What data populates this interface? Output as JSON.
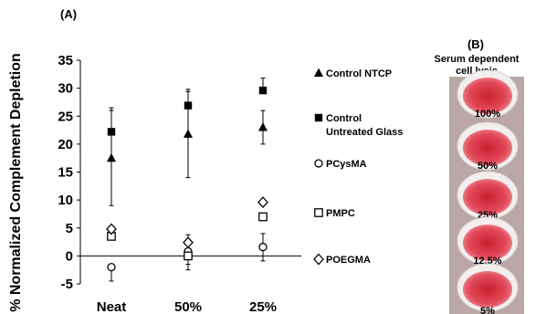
{
  "panel_a_label": "(A)",
  "panel_b_label": "(B)",
  "panel_b_title_line1": "Serum dependent",
  "panel_b_title_line2": "cell lysis",
  "well_labels": [
    "100%",
    "50%",
    "25%",
    "12.5%",
    "5%"
  ],
  "colors": {
    "marker": "#000000",
    "tray_bg": "#b9a8a6",
    "well_rim": "#f2eeee",
    "well_fill": "#e24a5a",
    "well_center": "#c9202e"
  },
  "chart_data": {
    "type": "scatter",
    "title": "",
    "xlabel": "",
    "ylabel": "% Normalized Complement Depletion",
    "categories": [
      "Neat",
      "50%",
      "25%"
    ],
    "ylim": [
      -5,
      35
    ],
    "yticks": [
      -5,
      0,
      5,
      10,
      15,
      20,
      25,
      30,
      35
    ],
    "grid": false,
    "legend_position": "right",
    "series": [
      {
        "name": "Control NTCP",
        "marker": "triangle-filled",
        "values": [
          17.5,
          21.8,
          23.0
        ],
        "err_high": [
          26.5,
          29.8,
          26.0
        ],
        "err_low": [
          9.0,
          14.0,
          20.0
        ]
      },
      {
        "name": "Control Untreated Glass",
        "marker": "square-filled",
        "values": [
          22.2,
          26.9,
          29.6
        ],
        "err_high": [
          26.0,
          29.4,
          31.8
        ],
        "err_low": [
          22.2,
          26.9,
          29.6
        ]
      },
      {
        "name": "PCysMA",
        "marker": "circle-open",
        "values": [
          -2.0,
          0.8,
          1.6
        ],
        "err_high": [
          -2.0,
          0.8,
          4.0
        ],
        "err_low": [
          -4.5,
          -1.5,
          -0.9
        ]
      },
      {
        "name": "PMPC",
        "marker": "square-open",
        "values": [
          3.5,
          0.0,
          7.0
        ],
        "err_high": [
          3.5,
          0.0,
          7.0
        ],
        "err_low": [
          3.5,
          -2.5,
          7.0
        ]
      },
      {
        "name": "POEGMA",
        "marker": "diamond-open",
        "values": [
          4.8,
          2.4,
          9.6
        ],
        "err_high": [
          4.8,
          3.8,
          9.6
        ],
        "err_low": [
          4.8,
          2.4,
          9.6
        ]
      }
    ],
    "legend": [
      {
        "line1": "Control NTCP",
        "line2": ""
      },
      {
        "line1": "Control",
        "line2": "Untreated Glass"
      },
      {
        "line1": "PCysMA",
        "line2": ""
      },
      {
        "line1": "PMPC",
        "line2": ""
      },
      {
        "line1": "POEGMA",
        "line2": ""
      }
    ]
  }
}
